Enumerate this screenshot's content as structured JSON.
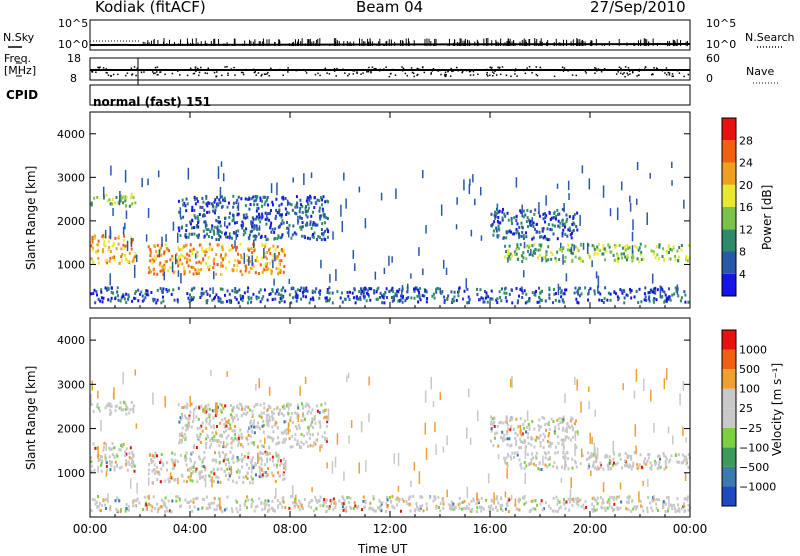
{
  "header": {
    "station": "Kodiak (fitACF)",
    "beam": "Beam 04",
    "date": "27/Sep/2010"
  },
  "top_panels": {
    "nsky_label": "N.Sky",
    "nsearch_label": "N.Search",
    "noise_ticks": [
      "10^5",
      "10^0"
    ],
    "freq_label": "Freq.",
    "freq_unit": "[MHz]",
    "freq_ticks": [
      "18",
      "8"
    ],
    "nave_label": "Nave",
    "nave_ticks": [
      "60",
      "0"
    ],
    "cpid_label": "CPID",
    "cpid_value": "normal (fast) 151"
  },
  "chart_data": [
    {
      "type": "heatmap",
      "name": "power",
      "xlabel": "",
      "ylabel": "Slant Range [km]",
      "ylim": [
        0,
        4500
      ],
      "yticks": [
        "1000",
        "2000",
        "3000",
        "4000"
      ],
      "xticks": [
        "00:00",
        "04:00",
        "08:00",
        "12:00",
        "16:00",
        "20:00",
        "00:00"
      ],
      "colorbar": {
        "label": "Power [dB]",
        "ticks": [
          "4",
          "8",
          "12",
          "16",
          "20",
          "24",
          "28"
        ],
        "colors": [
          "#1515e8",
          "#2a58a8",
          "#2f8a6a",
          "#7cc24a",
          "#e8e830",
          "#f0a020",
          "#f06010",
          "#e81010"
        ]
      },
      "regions": [
        {
          "t0": 0.0,
          "t1": 1.8,
          "r0": 1050,
          "r1": 1700,
          "level": "high"
        },
        {
          "t0": 0.0,
          "t1": 1.8,
          "r0": 2350,
          "r1": 2650,
          "level": "mid"
        },
        {
          "t0": 2.3,
          "t1": 7.8,
          "r0": 800,
          "r1": 1500,
          "level": "high"
        },
        {
          "t0": 3.5,
          "t1": 9.5,
          "r0": 1600,
          "r1": 2600,
          "level": "low"
        },
        {
          "t0": 16.5,
          "t1": 24.0,
          "r0": 1100,
          "r1": 1500,
          "level": "mid"
        },
        {
          "t0": 16.0,
          "t1": 19.5,
          "r0": 1600,
          "r1": 2300,
          "level": "low"
        },
        {
          "t0": 0.0,
          "t1": 24.0,
          "r0": 150,
          "r1": 500,
          "level": "low"
        }
      ]
    },
    {
      "type": "heatmap",
      "name": "velocity",
      "xlabel": "Time UT",
      "ylabel": "Slant Range [km]",
      "ylim": [
        0,
        4500
      ],
      "yticks": [
        "1000",
        "2000",
        "3000",
        "4000"
      ],
      "xticks": [
        "00:00",
        "04:00",
        "08:00",
        "12:00",
        "16:00",
        "20:00",
        "00:00"
      ],
      "colorbar": {
        "label": "Velocity [m s⁻¹]",
        "ticks": [
          "1000",
          "500",
          "100",
          "25",
          "−25",
          "−100",
          "−500",
          "−1000"
        ],
        "colors": [
          "#2048c0",
          "#3a7ab0",
          "#3c9a5a",
          "#7cd040",
          "#c8c8c8",
          "#c8c8c8",
          "#f0a030",
          "#f06010",
          "#e81010"
        ]
      }
    }
  ]
}
